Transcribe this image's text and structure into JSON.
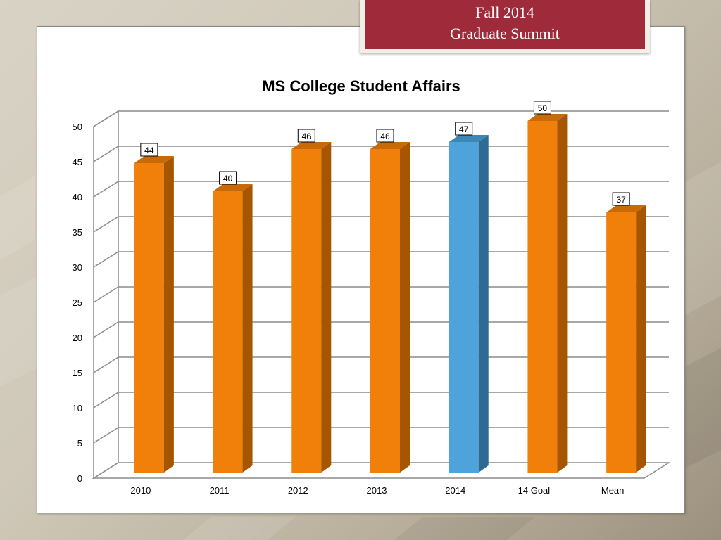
{
  "banner": {
    "line1": "Fall 2014",
    "line2": "Graduate Summit"
  },
  "chart_data": {
    "type": "bar",
    "title": "MS College Student Affairs",
    "categories": [
      "2010",
      "2011",
      "2012",
      "2013",
      "2014",
      "14 Goal",
      "Mean"
    ],
    "values": [
      44,
      40,
      46,
      46,
      47,
      50,
      37
    ],
    "data_labels": [
      "44",
      "40",
      "46",
      "46",
      "47",
      "50",
      "37"
    ],
    "ylim": [
      0,
      50
    ],
    "yticks": [
      0,
      5,
      10,
      15,
      20,
      25,
      30,
      35,
      40,
      45,
      50
    ],
    "grid": true,
    "three_d": true,
    "xlabel": "",
    "ylabel": "",
    "colors": {
      "default_front": "#f0800a",
      "default_side": "#a65500",
      "default_top": "#c96a08",
      "highlight_front": "#4fa3db",
      "highlight_side": "#2e6b94",
      "highlight_top": "#3d86b8",
      "gridline": "#8c8c8c"
    },
    "highlight_category": "2014"
  }
}
